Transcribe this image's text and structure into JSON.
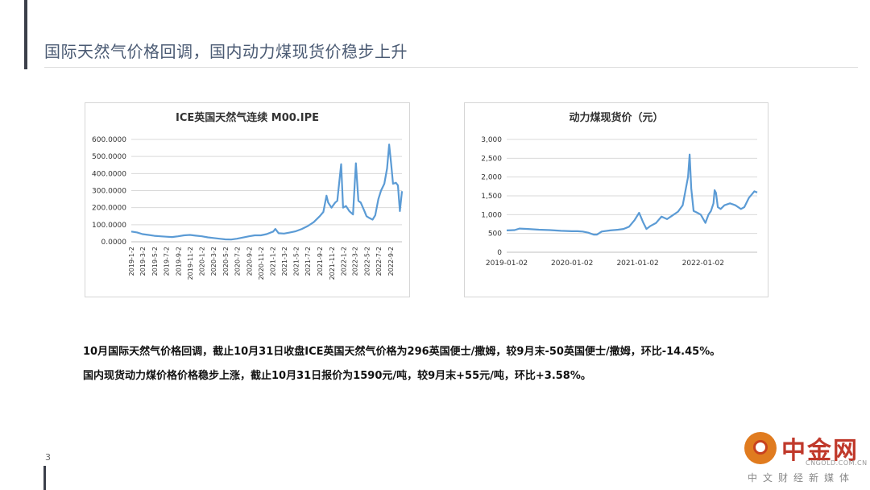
{
  "slide": {
    "title": "国际天然气价格回调，国内动力煤现货价稳步上升",
    "page_number": "3"
  },
  "paragraphs": [
    "10月国际天然气价格回调，截止10月31日收盘ICE英国天然气价格为296英国便士/撒姆，较9月末-50英国便士/撒姆，环比-14.45%。",
    "国内现货动力煤价格价格稳步上涨，截止10月31日报价为1590元/吨，较9月末+55元/吨，环比+3.58%。"
  ],
  "logo": {
    "name": "中金网",
    "site": "CNGOLD.COM.CN",
    "tagline": "中文财经新媒体"
  },
  "colors": {
    "line": "#5b9bd5",
    "grid": "#d9d9d9",
    "title": "#4a5a73"
  },
  "chart_data": [
    {
      "type": "line",
      "title": "ICE英国天然气连续 M00.IPE",
      "ylim": [
        0,
        600
      ],
      "yticks": [
        "0.0000",
        "100.0000",
        "200.0000",
        "300.0000",
        "400.0000",
        "500.0000",
        "600.0000"
      ],
      "xticks": [
        "2019-1-2",
        "2019-3-2",
        "2019-5-2",
        "2019-7-2",
        "2019-9-2",
        "2019-11-2",
        "2020-1-2",
        "2020-3-2",
        "2020-5-2",
        "2020-7-2",
        "2020-9-2",
        "2020-11-2",
        "2021-1-2",
        "2021-3-2",
        "2021-5-2",
        "2021-7-2",
        "2021-9-2",
        "2021-11-2",
        "2022-1-2",
        "2022-3-2",
        "2022-5-2",
        "2022-7-2",
        "2022-9-2"
      ],
      "xlim": [
        "2019-01-02",
        "2022-10-31"
      ],
      "grid": true,
      "series": [
        {
          "points": [
            [
              "2019-01-02",
              60
            ],
            [
              "2019-02-01",
              55
            ],
            [
              "2019-03-01",
              45
            ],
            [
              "2019-04-01",
              40
            ],
            [
              "2019-05-01",
              35
            ],
            [
              "2019-06-01",
              32
            ],
            [
              "2019-07-01",
              30
            ],
            [
              "2019-08-01",
              28
            ],
            [
              "2019-09-01",
              32
            ],
            [
              "2019-10-01",
              38
            ],
            [
              "2019-11-01",
              40
            ],
            [
              "2019-12-01",
              36
            ],
            [
              "2020-01-02",
              32
            ],
            [
              "2020-02-01",
              26
            ],
            [
              "2020-03-01",
              22
            ],
            [
              "2020-04-01",
              18
            ],
            [
              "2020-05-01",
              14
            ],
            [
              "2020-06-01",
              13
            ],
            [
              "2020-07-01",
              18
            ],
            [
              "2020-08-01",
              25
            ],
            [
              "2020-09-01",
              32
            ],
            [
              "2020-10-01",
              38
            ],
            [
              "2020-11-01",
              38
            ],
            [
              "2020-12-01",
              45
            ],
            [
              "2021-01-04",
              60
            ],
            [
              "2021-01-15",
              75
            ],
            [
              "2021-02-01",
              50
            ],
            [
              "2021-03-01",
              48
            ],
            [
              "2021-04-01",
              55
            ],
            [
              "2021-05-01",
              62
            ],
            [
              "2021-06-01",
              75
            ],
            [
              "2021-07-01",
              92
            ],
            [
              "2021-08-01",
              115
            ],
            [
              "2021-09-01",
              150
            ],
            [
              "2021-09-20",
              175
            ],
            [
              "2021-10-06",
              270
            ],
            [
              "2021-10-15",
              230
            ],
            [
              "2021-11-01",
              200
            ],
            [
              "2021-11-20",
              230
            ],
            [
              "2021-12-01",
              240
            ],
            [
              "2021-12-21",
              455
            ],
            [
              "2021-12-31",
              200
            ],
            [
              "2022-01-15",
              210
            ],
            [
              "2022-02-01",
              180
            ],
            [
              "2022-02-20",
              160
            ],
            [
              "2022-03-07",
              460
            ],
            [
              "2022-03-20",
              240
            ],
            [
              "2022-04-01",
              230
            ],
            [
              "2022-04-20",
              180
            ],
            [
              "2022-05-01",
              150
            ],
            [
              "2022-05-15",
              140
            ],
            [
              "2022-06-01",
              130
            ],
            [
              "2022-06-15",
              155
            ],
            [
              "2022-07-01",
              250
            ],
            [
              "2022-07-15",
              300
            ],
            [
              "2022-08-01",
              340
            ],
            [
              "2022-08-15",
              430
            ],
            [
              "2022-08-26",
              570
            ],
            [
              "2022-09-05",
              460
            ],
            [
              "2022-09-15",
              340
            ],
            [
              "2022-09-30",
              346
            ],
            [
              "2022-10-10",
              330
            ],
            [
              "2022-10-20",
              180
            ],
            [
              "2022-10-31",
              296
            ]
          ]
        }
      ]
    },
    {
      "type": "line",
      "title": "动力煤现货价（元）",
      "ylim": [
        0,
        3000
      ],
      "yticks": [
        "0",
        "500",
        "1,000",
        "1,500",
        "2,000",
        "2,500",
        "3,000"
      ],
      "xticks": [
        "2019-01-02",
        "2020-01-02",
        "2021-01-02",
        "2022-01-02"
      ],
      "xlim": [
        "2019-01-02",
        "2022-10-31"
      ],
      "grid": true,
      "series": [
        {
          "points": [
            [
              "2019-01-02",
              580
            ],
            [
              "2019-02-15",
              590
            ],
            [
              "2019-03-15",
              630
            ],
            [
              "2019-05-01",
              620
            ],
            [
              "2019-07-01",
              600
            ],
            [
              "2019-09-01",
              590
            ],
            [
              "2019-11-01",
              570
            ],
            [
              "2019-12-31",
              560
            ],
            [
              "2020-02-01",
              560
            ],
            [
              "2020-03-01",
              550
            ],
            [
              "2020-04-01",
              520
            ],
            [
              "2020-05-01",
              470
            ],
            [
              "2020-05-20",
              470
            ],
            [
              "2020-06-15",
              550
            ],
            [
              "2020-08-01",
              580
            ],
            [
              "2020-09-15",
              600
            ],
            [
              "2020-10-15",
              620
            ],
            [
              "2020-11-15",
              680
            ],
            [
              "2020-12-15",
              850
            ],
            [
              "2021-01-10",
              1050
            ],
            [
              "2021-02-01",
              800
            ],
            [
              "2021-02-20",
              620
            ],
            [
              "2021-03-15",
              700
            ],
            [
              "2021-04-15",
              780
            ],
            [
              "2021-05-15",
              950
            ],
            [
              "2021-06-15",
              880
            ],
            [
              "2021-07-15",
              980
            ],
            [
              "2021-08-15",
              1080
            ],
            [
              "2021-09-10",
              1250
            ],
            [
              "2021-09-30",
              1750
            ],
            [
              "2021-10-10",
              2000
            ],
            [
              "2021-10-19",
              2600
            ],
            [
              "2021-10-28",
              1700
            ],
            [
              "2021-11-10",
              1100
            ],
            [
              "2021-12-01",
              1050
            ],
            [
              "2021-12-20",
              1000
            ],
            [
              "2022-01-15",
              780
            ],
            [
              "2022-02-01",
              1000
            ],
            [
              "2022-02-15",
              1100
            ],
            [
              "2022-03-01",
              1300
            ],
            [
              "2022-03-07",
              1650
            ],
            [
              "2022-03-15",
              1580
            ],
            [
              "2022-03-25",
              1200
            ],
            [
              "2022-04-10",
              1150
            ],
            [
              "2022-05-01",
              1250
            ],
            [
              "2022-06-01",
              1300
            ],
            [
              "2022-07-01",
              1250
            ],
            [
              "2022-08-01",
              1150
            ],
            [
              "2022-08-20",
              1200
            ],
            [
              "2022-09-15",
              1450
            ],
            [
              "2022-09-30",
              1535
            ],
            [
              "2022-10-15",
              1620
            ],
            [
              "2022-10-31",
              1590
            ]
          ]
        }
      ]
    }
  ]
}
